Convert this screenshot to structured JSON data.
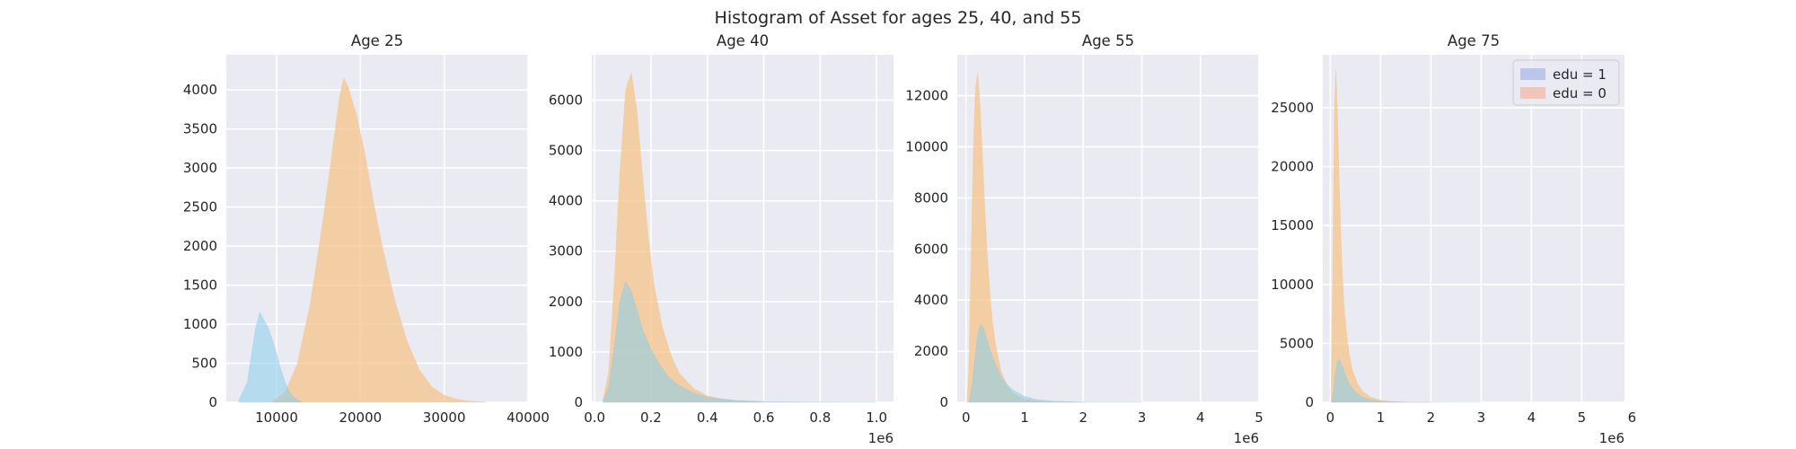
{
  "suptitle": "Histogram of Asset for ages 25, 40, and 55",
  "chart_data": [
    {
      "type": "histogram",
      "title": "Age 25",
      "xlim": [
        4000,
        40000
      ],
      "ylim": [
        0,
        4450
      ],
      "xticks": [
        10000,
        20000,
        30000,
        40000
      ],
      "xtick_labels": [
        "10000",
        "20000",
        "30000",
        "40000"
      ],
      "yticks": [
        0,
        500,
        1000,
        1500,
        2000,
        2500,
        3000,
        3500,
        4000
      ],
      "ytick_labels": [
        "0",
        "500",
        "1000",
        "1500",
        "2000",
        "2500",
        "3000",
        "3500",
        "4000"
      ],
      "offset_label": "",
      "grid": true,
      "series": [
        {
          "name": "edu = 1",
          "color": "#87ceeb",
          "x": [
            5500,
            6500,
            7000,
            7500,
            8000,
            8500,
            9000,
            9500,
            10000,
            10500,
            11000,
            11500,
            12000,
            12500,
            13000
          ],
          "y": [
            30,
            250,
            600,
            950,
            1150,
            1050,
            950,
            800,
            620,
            420,
            260,
            140,
            70,
            30,
            5
          ]
        },
        {
          "name": "edu = 0",
          "color": "#f6c48a",
          "x": [
            9500,
            11000,
            12500,
            14000,
            15500,
            16500,
            17500,
            18000,
            18500,
            19500,
            20500,
            21500,
            22500,
            24000,
            25500,
            27000,
            28500,
            30000,
            31500,
            33000,
            35000
          ],
          "y": [
            10,
            120,
            500,
            1250,
            2300,
            3100,
            3900,
            4150,
            4050,
            3700,
            3200,
            2600,
            2050,
            1350,
            800,
            420,
            200,
            90,
            40,
            15,
            5
          ]
        }
      ]
    },
    {
      "type": "histogram",
      "title": "Age 40",
      "xlim": [
        -0.01,
        1.06
      ],
      "ylim": [
        0,
        6900
      ],
      "xticks": [
        0.0,
        0.2,
        0.4,
        0.6,
        0.8,
        1.0
      ],
      "xtick_labels": [
        "0.0",
        "0.2",
        "0.4",
        "0.6",
        "0.8",
        "1.0"
      ],
      "yticks": [
        0,
        1000,
        2000,
        3000,
        4000,
        5000,
        6000
      ],
      "ytick_labels": [
        "0",
        "1000",
        "2000",
        "3000",
        "4000",
        "5000",
        "6000"
      ],
      "offset_label": "1e6",
      "grid": true,
      "series": [
        {
          "name": "edu = 1",
          "color": "#87ceeb",
          "x": [
            0.03,
            0.05,
            0.07,
            0.09,
            0.11,
            0.13,
            0.15,
            0.17,
            0.2,
            0.23,
            0.26,
            0.3,
            0.35,
            0.4,
            0.5,
            0.6,
            0.8,
            1.0
          ],
          "y": [
            30,
            300,
            1100,
            2000,
            2400,
            2200,
            1850,
            1450,
            1050,
            750,
            520,
            330,
            190,
            100,
            40,
            15,
            5,
            2
          ]
        },
        {
          "name": "edu = 0",
          "color": "#f6c48a",
          "x": [
            0.03,
            0.05,
            0.07,
            0.09,
            0.11,
            0.13,
            0.15,
            0.17,
            0.19,
            0.21,
            0.24,
            0.27,
            0.3,
            0.35,
            0.4,
            0.45,
            0.5,
            0.6
          ],
          "y": [
            50,
            600,
            2400,
            4600,
            6200,
            6550,
            5800,
            4500,
            3300,
            2350,
            1500,
            950,
            580,
            280,
            130,
            60,
            25,
            5
          ]
        }
      ]
    },
    {
      "type": "histogram",
      "title": "Age 55",
      "xlim": [
        -0.15,
        5.0
      ],
      "ylim": [
        0,
        13600
      ],
      "xticks": [
        0,
        1,
        2,
        3,
        4,
        5
      ],
      "xtick_labels": [
        "0",
        "1",
        "2",
        "3",
        "4",
        "5"
      ],
      "yticks": [
        0,
        2000,
        4000,
        6000,
        8000,
        10000,
        12000
      ],
      "ytick_labels": [
        "0",
        "2000",
        "4000",
        "6000",
        "8000",
        "10000",
        "12000"
      ],
      "offset_label": "1e6",
      "grid": true,
      "series": [
        {
          "name": "edu = 1",
          "color": "#87ceeb",
          "x": [
            0.05,
            0.1,
            0.15,
            0.2,
            0.25,
            0.3,
            0.35,
            0.4,
            0.5,
            0.6,
            0.7,
            0.8,
            1.0,
            1.2,
            1.5,
            2.0,
            3.0
          ],
          "y": [
            50,
            600,
            1700,
            2700,
            3050,
            2900,
            2500,
            2100,
            1500,
            1000,
            700,
            480,
            230,
            110,
            45,
            10,
            2
          ]
        },
        {
          "name": "edu = 0",
          "color": "#f6c48a",
          "x": [
            0.02,
            0.05,
            0.08,
            0.12,
            0.16,
            0.2,
            0.24,
            0.28,
            0.32,
            0.36,
            0.4,
            0.45,
            0.5,
            0.6,
            0.7,
            0.8,
            1.0,
            1.2,
            1.5,
            2.0
          ],
          "y": [
            100,
            1500,
            5000,
            9500,
            12300,
            12900,
            11600,
            9600,
            7600,
            5900,
            4500,
            3200,
            2300,
            1200,
            650,
            350,
            120,
            50,
            15,
            3
          ]
        }
      ]
    },
    {
      "type": "histogram",
      "title": "Age 75",
      "xlim": [
        -0.15,
        5.85
      ],
      "ylim": [
        0,
        29500
      ],
      "xticks": [
        0,
        1,
        2,
        3,
        4,
        5,
        6
      ],
      "xtick_labels": [
        "0",
        "1",
        "2",
        "3",
        "4",
        "5",
        "6"
      ],
      "yticks": [
        0,
        5000,
        10000,
        15000,
        20000,
        25000
      ],
      "ytick_labels": [
        "0",
        "5000",
        "10000",
        "15000",
        "20000",
        "25000"
      ],
      "offset_label": "1e6",
      "grid": true,
      "legend": {
        "loc": "upper right",
        "entries": [
          "edu = 1",
          "edu = 0"
        ],
        "colors": [
          "#bcc6ea",
          "#f0c6b8"
        ]
      },
      "series": [
        {
          "name": "edu = 1",
          "color": "#87ceeb",
          "x": [
            0.03,
            0.06,
            0.1,
            0.14,
            0.18,
            0.22,
            0.26,
            0.3,
            0.35,
            0.4,
            0.5,
            0.6,
            0.7,
            0.8,
            1.0,
            1.3,
            1.6,
            2.0,
            3.0
          ],
          "y": [
            100,
            900,
            2400,
            3500,
            3700,
            3300,
            2800,
            2300,
            1800,
            1400,
            850,
            550,
            350,
            220,
            90,
            35,
            15,
            5,
            1
          ]
        },
        {
          "name": "edu = 0",
          "color": "#f6c48a",
          "x": [
            0.02,
            0.05,
            0.08,
            0.11,
            0.14,
            0.17,
            0.2,
            0.23,
            0.27,
            0.32,
            0.38,
            0.45,
            0.55,
            0.65,
            0.8,
            1.0,
            1.2,
            1.5,
            2.0
          ],
          "y": [
            1500,
            12000,
            24500,
            28300,
            25000,
            20000,
            15500,
            11800,
            8500,
            6000,
            4000,
            2600,
            1500,
            900,
            450,
            180,
            70,
            25,
            5
          ]
        }
      ]
    }
  ]
}
